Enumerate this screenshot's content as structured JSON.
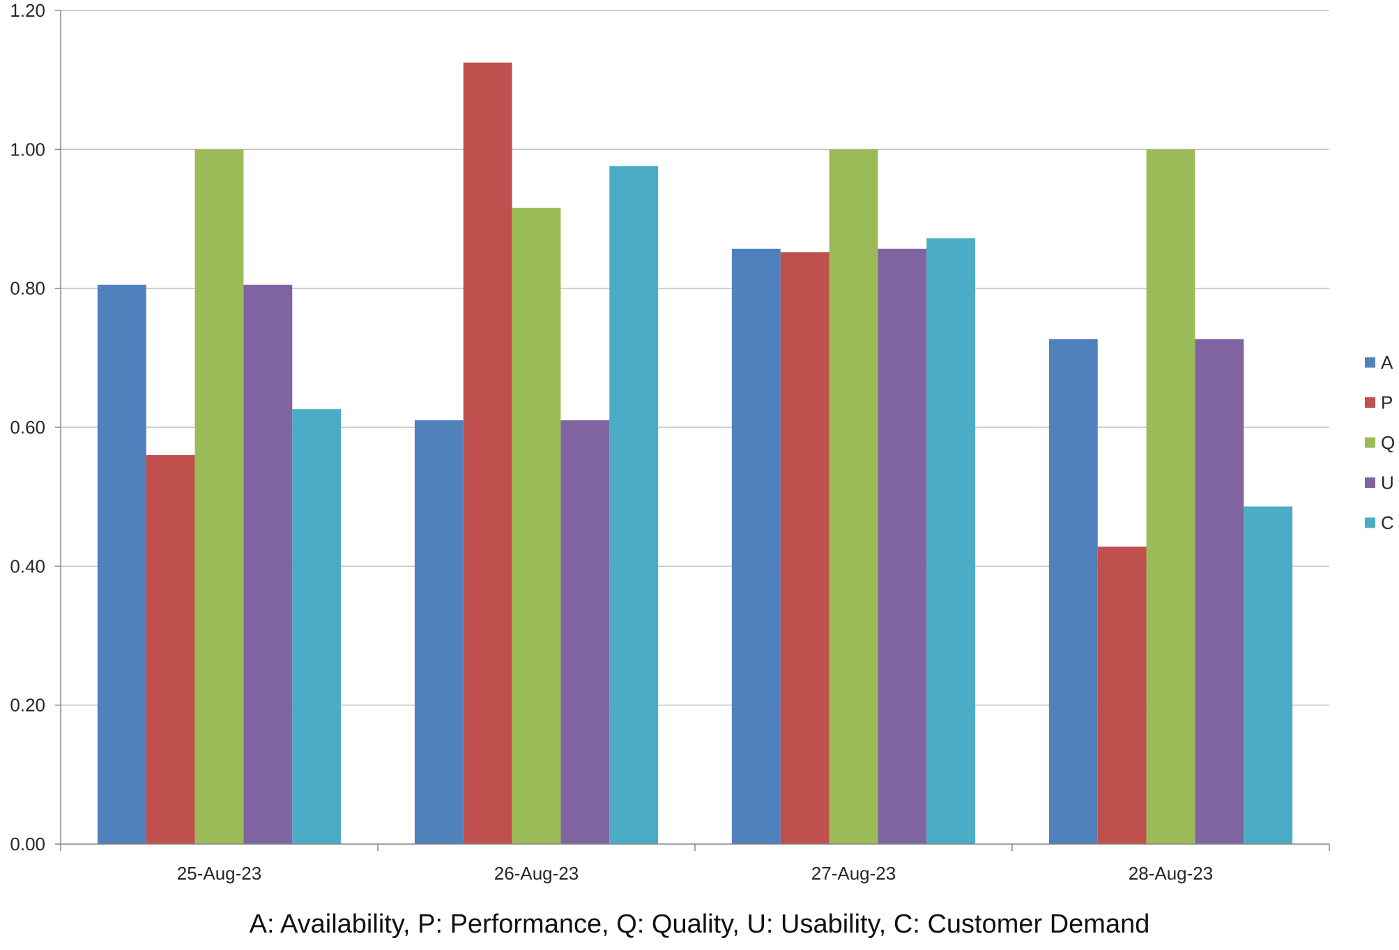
{
  "chart_data": {
    "type": "bar",
    "categories": [
      "25-Aug-23",
      "26-Aug-23",
      "27-Aug-23",
      "28-Aug-23"
    ],
    "series": [
      {
        "name": "A",
        "color": "#4F81BD",
        "values": [
          0.805,
          0.61,
          0.857,
          0.727
        ]
      },
      {
        "name": "P",
        "color": "#C0504D",
        "values": [
          0.56,
          1.125,
          0.852,
          0.428
        ]
      },
      {
        "name": "Q",
        "color": "#9BBB59",
        "values": [
          1.0,
          0.916,
          1.0,
          1.0
        ]
      },
      {
        "name": "U",
        "color": "#8064A2",
        "values": [
          0.805,
          0.61,
          0.857,
          0.727
        ]
      },
      {
        "name": "C",
        "color": "#4BACC6",
        "values": [
          0.626,
          0.976,
          0.872,
          0.486
        ]
      }
    ],
    "yticks": [
      "0.00",
      "0.20",
      "0.40",
      "0.60",
      "0.80",
      "1.00",
      "1.20"
    ],
    "ylim": [
      0,
      1.2
    ],
    "grid": true,
    "legend_position": "right",
    "xlabel": "",
    "ylabel": "",
    "caption": "A: Availability, P: Performance,  Q: Quality, U: Usability, C: Customer Demand"
  }
}
